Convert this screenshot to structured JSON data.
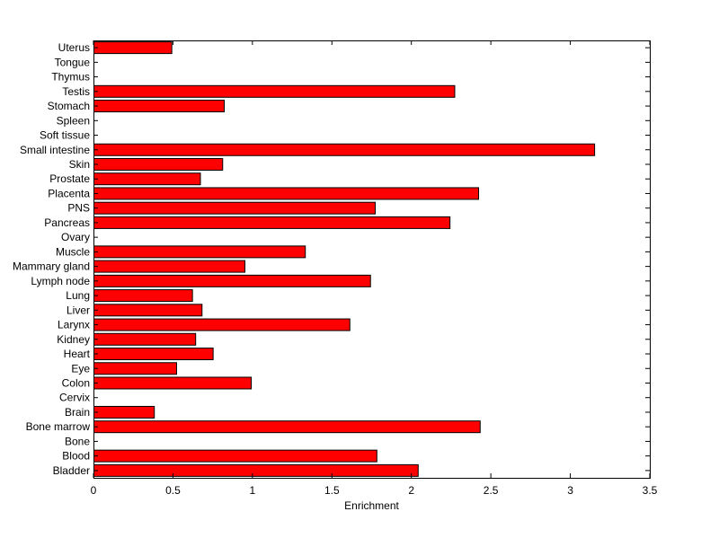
{
  "chart_data": {
    "type": "bar",
    "orientation": "horizontal",
    "title": "",
    "xlabel": "Enrichment",
    "ylabel": "",
    "xlim": [
      0,
      3.5
    ],
    "xticks": [
      0,
      0.5,
      1,
      1.5,
      2,
      2.5,
      3,
      3.5
    ],
    "xtick_labels": [
      "0",
      "0.5",
      "1",
      "1.5",
      "2",
      "2.5",
      "3",
      "3.5"
    ],
    "grid": false,
    "legend": "none",
    "bar_color": "#ff0000",
    "bar_edge_color": "#000000",
    "categories": [
      "Bladder",
      "Blood",
      "Bone",
      "Bone marrow",
      "Brain",
      "Cervix",
      "Colon",
      "Eye",
      "Heart",
      "Kidney",
      "Larynx",
      "Liver",
      "Lung",
      "Lymph node",
      "Mammary gland",
      "Muscle",
      "Ovary",
      "Pancreas",
      "PNS",
      "Placenta",
      "Prostate",
      "Skin",
      "Small intestine",
      "Soft tissue",
      "Spleen",
      "Stomach",
      "Testis",
      "Thymus",
      "Tongue",
      "Uterus"
    ],
    "values": [
      2.04,
      1.78,
      0,
      2.43,
      0.38,
      0,
      0.99,
      0.52,
      0.75,
      0.64,
      1.61,
      0.68,
      0.62,
      1.74,
      0.95,
      1.33,
      0,
      2.24,
      1.77,
      2.42,
      0.67,
      0.81,
      3.15,
      0,
      0,
      0.82,
      2.27,
      0,
      0,
      0.49
    ]
  }
}
